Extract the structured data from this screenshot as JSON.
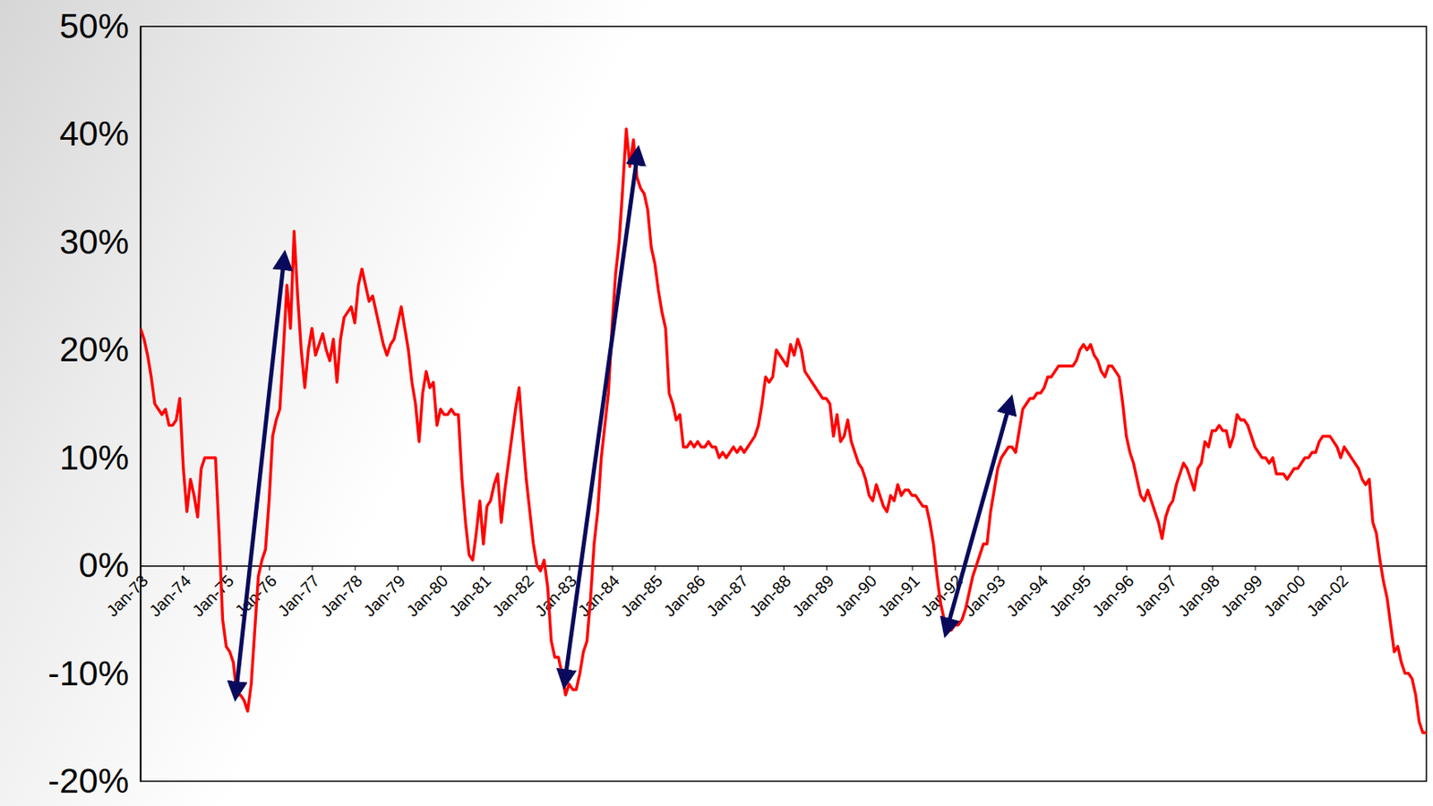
{
  "chart_data": {
    "type": "line",
    "color": "#ff0000",
    "grid": false,
    "categories": [
      "Jan-73",
      null,
      null,
      null,
      null,
      null,
      null,
      null,
      null,
      null,
      null,
      null,
      "Jan-74",
      null,
      null,
      null,
      null,
      null,
      null,
      null,
      null,
      null,
      null,
      null,
      "Jan-75",
      null,
      null,
      null,
      null,
      null,
      null,
      null,
      null,
      null,
      null,
      null,
      "Jan-76",
      null,
      null,
      null,
      null,
      null,
      null,
      null,
      null,
      null,
      null,
      null,
      "Jan-77",
      null,
      null,
      null,
      null,
      null,
      null,
      null,
      null,
      null,
      null,
      null,
      "Jan-78",
      null,
      null,
      null,
      null,
      null,
      null,
      null,
      null,
      null,
      null,
      null,
      "Jan-79",
      null,
      null,
      null,
      null,
      null,
      null,
      null,
      null,
      null,
      null,
      null,
      "Jan-80",
      null,
      null,
      null,
      null,
      null,
      null,
      null,
      null,
      null,
      null,
      null,
      "Jan-81",
      null,
      null,
      null,
      null,
      null,
      null,
      null,
      null,
      null,
      null,
      null,
      "Jan-82",
      null,
      null,
      null,
      null,
      null,
      null,
      null,
      null,
      null,
      null,
      null,
      "Jan-83",
      null,
      null,
      null,
      null,
      null,
      null,
      null,
      null,
      null,
      null,
      null,
      "Jan-84",
      null,
      null,
      null,
      null,
      null,
      null,
      null,
      null,
      null,
      null,
      null,
      "Jan-85",
      null,
      null,
      null,
      null,
      null,
      null,
      null,
      null,
      null,
      null,
      null,
      "Jan-86",
      null,
      null,
      null,
      null,
      null,
      null,
      null,
      null,
      null,
      null,
      null,
      "Jan-87",
      null,
      null,
      null,
      null,
      null,
      null,
      null,
      null,
      null,
      null,
      null,
      "Jan-88",
      null,
      null,
      null,
      null,
      null,
      null,
      null,
      null,
      null,
      null,
      null,
      "Jan-89",
      null,
      null,
      null,
      null,
      null,
      null,
      null,
      null,
      null,
      null,
      null,
      "Jan-90",
      null,
      null,
      null,
      null,
      null,
      null,
      null,
      null,
      null,
      null,
      null,
      "Jan-91",
      null,
      null,
      null,
      null,
      null,
      null,
      null,
      null,
      null,
      null,
      null,
      "Jan-92",
      null,
      null,
      null,
      null,
      null,
      null,
      null,
      null,
      null,
      null,
      null,
      "Jan-93",
      null,
      null,
      null,
      null,
      null,
      null,
      null,
      null,
      null,
      null,
      null,
      "Jan-94",
      null,
      null,
      null,
      null,
      null,
      null,
      null,
      null,
      null,
      null,
      null,
      "Jan-95",
      null,
      null,
      null,
      null,
      null,
      null,
      null,
      null,
      null,
      null,
      null,
      "Jan-96",
      null,
      null,
      null,
      null,
      null,
      null,
      null,
      null,
      null,
      null,
      null,
      "Jan-97",
      null,
      null,
      null,
      null,
      null,
      null,
      null,
      null,
      null,
      null,
      null,
      "Jan-98",
      null,
      null,
      null,
      null,
      null,
      null,
      null,
      null,
      null,
      null,
      null,
      "Jan-99",
      null,
      null,
      null,
      null,
      null,
      null,
      null,
      null,
      null,
      null,
      null,
      "Jan-00",
      null,
      null,
      null,
      null,
      null,
      null,
      null,
      null,
      null,
      null,
      null,
      "Jan-02",
      null,
      null,
      null,
      null,
      null,
      null,
      null,
      null,
      null,
      null,
      null,
      null,
      null,
      null,
      null,
      null,
      null,
      null,
      null,
      null,
      null,
      null,
      null,
      null
    ],
    "values": [
      22,
      21,
      19.5,
      17.5,
      15,
      14.5,
      14,
      14.5,
      13,
      13,
      13.5,
      15.5,
      9,
      5,
      8,
      6.5,
      4.5,
      9,
      10,
      10,
      10,
      10,
      3,
      -5,
      -7.5,
      -8,
      -9,
      -12,
      -12,
      -12.5,
      -13.5,
      -11,
      -6,
      -1,
      0.5,
      1.5,
      6,
      12,
      13.5,
      14.5,
      20,
      26,
      22,
      31,
      25,
      20,
      16.5,
      20,
      22,
      19.5,
      20.5,
      21.5,
      20,
      19,
      21,
      17,
      21,
      23,
      23.5,
      24,
      22.5,
      26,
      27.5,
      26,
      24.5,
      25,
      23.5,
      22,
      20.5,
      19.5,
      20.5,
      21,
      22.5,
      24,
      22,
      20,
      17,
      15,
      11.5,
      16,
      18,
      16.5,
      17,
      13,
      14.5,
      14,
      14,
      14.5,
      14,
      14,
      8,
      4,
      1,
      0.5,
      3,
      6,
      2,
      5.5,
      6,
      7.5,
      8.5,
      4,
      7,
      9.5,
      12,
      14.5,
      16.5,
      12,
      8,
      5,
      2,
      0,
      -0.5,
      0.5,
      -2,
      -7,
      -8.5,
      -8.5,
      -10,
      -12,
      -11,
      -11.5,
      -11.5,
      -10,
      -8,
      -7,
      -3,
      2,
      5,
      10,
      13,
      16,
      22,
      27,
      30,
      35,
      40.5,
      37,
      39.5,
      36,
      35,
      34.5,
      33,
      29.5,
      28,
      25.5,
      23.5,
      22,
      16,
      15,
      13.5,
      14,
      11,
      11,
      11.5,
      11,
      11.5,
      11,
      11,
      11.5,
      11,
      11,
      10,
      10.5,
      10,
      10.5,
      11,
      10.5,
      11,
      10.5,
      11,
      11.5,
      12,
      13,
      15,
      17.5,
      17,
      17.5,
      20,
      19.5,
      19,
      18.5,
      20.5,
      19.5,
      21,
      20,
      18,
      17.5,
      17,
      16.5,
      16,
      15.5,
      15.5,
      15,
      12,
      14,
      11.5,
      12,
      13.5,
      11.5,
      10.5,
      9.5,
      9,
      8,
      6.5,
      6,
      7.5,
      6.5,
      5.5,
      5,
      6.5,
      6,
      7.5,
      6.5,
      7,
      7,
      6.5,
      6.5,
      6,
      5.5,
      5.5,
      4,
      2,
      -1,
      -3.5,
      -5,
      -5.5,
      -6,
      -5.5,
      -5.5,
      -5,
      -4,
      -2.5,
      -1,
      0,
      1,
      2,
      2,
      5,
      7,
      9,
      10,
      10.5,
      11,
      11,
      10.5,
      12.5,
      14.5,
      15,
      15.5,
      15.5,
      16,
      16,
      16.5,
      17.5,
      17.5,
      18,
      18.5,
      18.5,
      18.5,
      18.5,
      18.5,
      19,
      20,
      20.5,
      20,
      20.5,
      19.5,
      19,
      18,
      17.5,
      18.5,
      18.5,
      18,
      17.5,
      15,
      12,
      10.5,
      9.5,
      8,
      6.5,
      6,
      7,
      6,
      5,
      4,
      2.5,
      4.5,
      5.5,
      6,
      7.5,
      8.5,
      9.5,
      9,
      8,
      7,
      9,
      9.5,
      11.5,
      11,
      12.5,
      12.5,
      13,
      12.5,
      12.5,
      11,
      12,
      14,
      13.5,
      13.5,
      13,
      12,
      11,
      10.5,
      10,
      10,
      9.5,
      10,
      8.5,
      8.5,
      8.5,
      8,
      8.5,
      9,
      9,
      9.5,
      10,
      10,
      10.5,
      10.5,
      11.5,
      12,
      12,
      12,
      11.5,
      11,
      10,
      11,
      10.5,
      10,
      9.5,
      9,
      8,
      7.5,
      8,
      4,
      3,
      0.5,
      -1.5,
      -3,
      -5.5,
      -8,
      -7.5,
      -9,
      -10,
      -10,
      -10.5,
      -12,
      -14.5,
      -15.5,
      -15.5
    ],
    "ylim": [
      -20,
      50
    ],
    "yticks": [
      {
        "value": -20,
        "label": "-20%"
      },
      {
        "value": -10,
        "label": "-10%"
      },
      {
        "value": 0,
        "label": "0%"
      },
      {
        "value": 10,
        "label": "10%"
      },
      {
        "value": 20,
        "label": "20%"
      },
      {
        "value": 30,
        "label": "30%"
      },
      {
        "value": 40,
        "label": "40%"
      },
      {
        "value": 50,
        "label": "50%"
      }
    ]
  }
}
